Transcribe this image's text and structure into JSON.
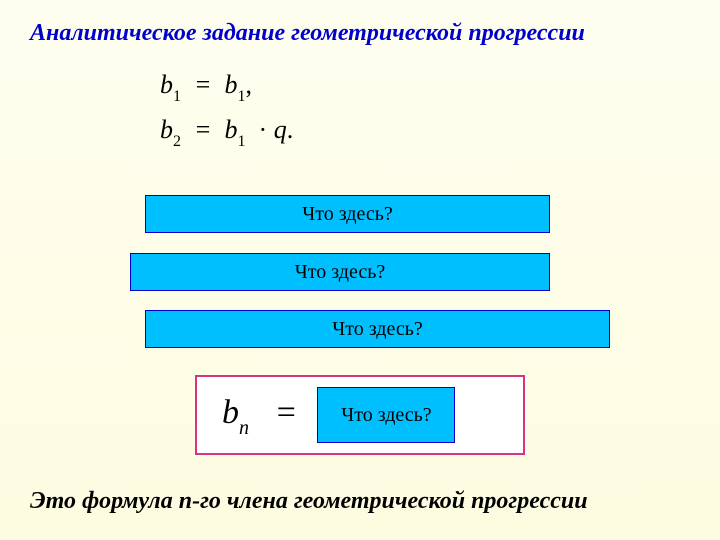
{
  "title": "Аналитическое задание геометрической прогрессии",
  "eq1": {
    "left_var": "b",
    "left_sub": "1",
    "right_var": "b",
    "right_sub": "1",
    "tail": ","
  },
  "eq2": {
    "left_var": "b",
    "left_sub": "2",
    "r1_var": "b",
    "r1_sub": "1",
    "dot": "·",
    "r2_var": "q",
    "tail": "."
  },
  "boxes": {
    "b1": "Что здесь?",
    "b2": "Что здесь?",
    "b3": "Что здесь?",
    "b4": "Что здесь?"
  },
  "formula": {
    "var": "b",
    "sub": "n",
    "eq": "="
  },
  "bottom": "Это формула n-го члена геометрической прогрессии",
  "colors": {
    "title": "#0000cd",
    "box_bg": "#00bfff",
    "box_border": "#0000cd",
    "frame_border": "#d63384",
    "frame_bg": "#ffffff",
    "page_bg_top": "#fefef0",
    "page_bg_bottom": "#fdfce0"
  }
}
